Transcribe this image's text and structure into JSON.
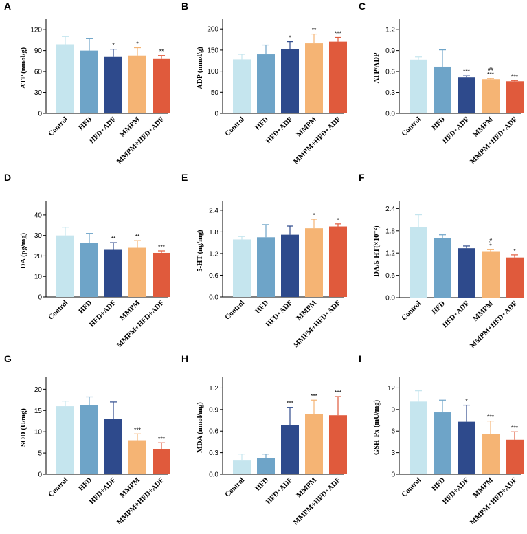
{
  "figure": {
    "categories": [
      "Control",
      "HFD",
      "HFD+ADF",
      "MMPM",
      "MMPM+HFD+ADF"
    ],
    "colors": {
      "Control": "#c5e5ee",
      "HFD": "#6ea4c8",
      "HFD+ADF": "#2e4a8c",
      "MMPM": "#f5b474",
      "MMPM+HFD+ADF": "#e05a3c"
    }
  },
  "chart_data": [
    {
      "type": "bar",
      "panel": "A",
      "ylabel": "ATP (nmol/g)",
      "yticks": [
        "0",
        "30",
        "60",
        "90",
        "120"
      ],
      "ylim": [
        0,
        130
      ],
      "categories": [
        "Control",
        "HFD",
        "HFD+ADF",
        "MMPM",
        "MMPM+HFD+ADF"
      ],
      "values": [
        99,
        90,
        81,
        83,
        78
      ],
      "errors": [
        11,
        17,
        11,
        11,
        5
      ],
      "annotations": [
        [],
        [],
        [
          "*"
        ],
        [
          "*"
        ],
        [
          "**"
        ]
      ]
    },
    {
      "type": "bar",
      "panel": "B",
      "ylabel": "ADP (nmol/g)",
      "yticks": [
        "0",
        "50",
        "100",
        "150",
        "200"
      ],
      "ylim": [
        0,
        215
      ],
      "categories": [
        "Control",
        "HFD",
        "HFD+ADF",
        "MMPM",
        "MMPM+HFD+ADF"
      ],
      "values": [
        128,
        140,
        153,
        166,
        170
      ],
      "errors": [
        12,
        22,
        17,
        22,
        10
      ],
      "annotations": [
        [],
        [],
        [
          "*"
        ],
        [
          "**"
        ],
        [
          "***"
        ]
      ]
    },
    {
      "type": "bar",
      "panel": "C",
      "ylabel": "ATP/ADP",
      "yticks": [
        "0.0",
        "0.3",
        "0.6",
        "0.9",
        "1.2"
      ],
      "ylim": [
        0,
        1.3
      ],
      "categories": [
        "Control",
        "HFD",
        "HFD+ADF",
        "MMPM",
        "MMPM+HFD+ADF"
      ],
      "values": [
        0.77,
        0.67,
        0.52,
        0.49,
        0.46
      ],
      "errors": [
        0.04,
        0.24,
        0.02,
        0.01,
        0.01
      ],
      "annotations": [
        [],
        [],
        [
          "***"
        ],
        [
          "***",
          "##"
        ],
        [
          "***"
        ]
      ]
    },
    {
      "type": "bar",
      "panel": "D",
      "ylabel": "DA (pg/mg)",
      "yticks": [
        "0",
        "10",
        "20",
        "30",
        "40"
      ],
      "ylim": [
        0,
        45
      ],
      "categories": [
        "Control",
        "HFD",
        "HFD+ADF",
        "MMPM",
        "MMPM+HFD+ADF"
      ],
      "values": [
        30,
        26.5,
        23,
        24,
        21.5
      ],
      "errors": [
        4,
        4.5,
        3.5,
        3.5,
        1
      ],
      "annotations": [
        [],
        [],
        [
          "**"
        ],
        [
          "**"
        ],
        [
          "***"
        ]
      ]
    },
    {
      "type": "bar",
      "panel": "E",
      "ylabel": "5-HT (ng/mg)",
      "yticks": [
        "0.0",
        "0.6",
        "1.2",
        "1.8",
        "2.4"
      ],
      "ylim": [
        0,
        2.55
      ],
      "categories": [
        "Control",
        "HFD",
        "HFD+ADF",
        "MMPM",
        "MMPM+HFD+ADF"
      ],
      "values": [
        1.59,
        1.65,
        1.72,
        1.9,
        1.95
      ],
      "errors": [
        0.08,
        0.35,
        0.24,
        0.25,
        0.07
      ],
      "annotations": [
        [],
        [],
        [],
        [
          "*"
        ],
        [
          "*"
        ]
      ]
    },
    {
      "type": "bar",
      "panel": "F",
      "ylabel": "DA/5-HT(×10⁻²)",
      "yticks": [
        "0.0",
        "0.6",
        "1.2",
        "1.8",
        "2.4"
      ],
      "ylim": [
        0,
        2.5
      ],
      "categories": [
        "Control",
        "HFD",
        "HFD+ADF",
        "MMPM",
        "MMPM+HFD+ADF"
      ],
      "values": [
        1.9,
        1.61,
        1.33,
        1.25,
        1.08
      ],
      "errors": [
        0.33,
        0.08,
        0.06,
        0.04,
        0.07
      ],
      "annotations": [
        [],
        [],
        [],
        [
          "*",
          "#"
        ],
        [
          "*"
        ]
      ]
    },
    {
      "type": "bar",
      "panel": "G",
      "ylabel": "SOD (U/mg)",
      "yticks": [
        "0",
        "5",
        "10",
        "15",
        "20"
      ],
      "ylim": [
        0,
        22
      ],
      "categories": [
        "Control",
        "HFD",
        "HFD+ADF",
        "MMPM",
        "MMPM+HFD+ADF"
      ],
      "values": [
        16,
        16.2,
        13,
        8,
        5.9
      ],
      "errors": [
        1.2,
        2,
        4,
        1.5,
        1.5
      ],
      "annotations": [
        [],
        [],
        [],
        [
          "***"
        ],
        [
          "***"
        ]
      ]
    },
    {
      "type": "bar",
      "panel": "H",
      "ylabel": "MDA (nmol/mg)",
      "yticks": [
        "0.0",
        "0.3",
        "0.6",
        "0.9",
        "1.2"
      ],
      "ylim": [
        0,
        1.3
      ],
      "categories": [
        "Control",
        "HFD",
        "HFD+ADF",
        "MMPM",
        "MMPM+HFD+ADF"
      ],
      "values": [
        0.19,
        0.22,
        0.68,
        0.84,
        0.82
      ],
      "errors": [
        0.09,
        0.06,
        0.25,
        0.19,
        0.26
      ],
      "annotations": [
        [],
        [],
        [
          "***"
        ],
        [
          "***"
        ],
        [
          "***"
        ]
      ]
    },
    {
      "type": "bar",
      "panel": "I",
      "ylabel": "GSH-Px (mU/mg)",
      "yticks": [
        "0",
        "3",
        "6",
        "9",
        "12"
      ],
      "ylim": [
        0,
        13
      ],
      "categories": [
        "Control",
        "HFD",
        "HFD+ADF",
        "MMPM",
        "MMPM+HFD+ADF"
      ],
      "values": [
        10.1,
        8.6,
        7.3,
        5.6,
        4.8
      ],
      "errors": [
        1.5,
        1.7,
        2.3,
        1.8,
        1.1
      ],
      "annotations": [
        [],
        [],
        [
          "*"
        ],
        [
          "***"
        ],
        [
          "***"
        ]
      ]
    }
  ]
}
